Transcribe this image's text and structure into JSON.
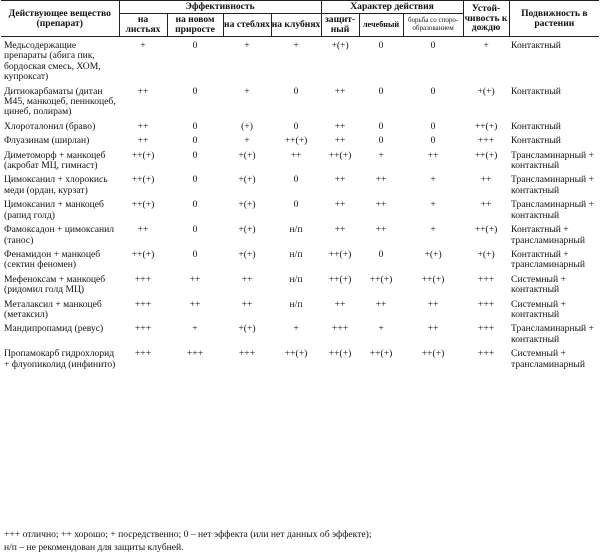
{
  "headers": {
    "substance": "Действующее вещество (препарат)",
    "efficacy": "Эффективность",
    "action": "Характер действия",
    "resistance": "Устой-чивость к дождю",
    "mobility": "Подвижность в растении",
    "leaves": "на листьях",
    "new_growth": "на новом приросте",
    "stems": "на стеблях",
    "tubers": "на клубнях",
    "protective": "защит-ный",
    "curative": "лечебный",
    "anti_spore": "борьба со споро-образованием"
  },
  "rows": [
    {
      "name": "Медьсодержащие препараты (абига пик, бордоская смесь, ХОМ, купроксат)",
      "leaves": "+",
      "new_growth": "0",
      "stems": "+",
      "tubers": "+",
      "protective": "+(+)",
      "curative": "0",
      "anti_spore": "0",
      "rain": "+",
      "mobility": "Контактный"
    },
    {
      "name": "Дитиокарбаматы (дитан М45, манкоцеб, пеннкоцеб, цинеб, полирам)",
      "leaves": "++",
      "new_growth": "0",
      "stems": "+",
      "tubers": "0",
      "protective": "++",
      "curative": "0",
      "anti_spore": "0",
      "rain": "+(+)",
      "mobility": "Контактный"
    },
    {
      "name": "Хлороталонил (браво)",
      "leaves": "++",
      "new_growth": "0",
      "stems": "(+)",
      "tubers": "0",
      "protective": "++",
      "curative": "0",
      "anti_spore": "0",
      "rain": "++(+)",
      "mobility": "Контактный"
    },
    {
      "name": "Флуазинам (ширлан)",
      "leaves": "++",
      "new_growth": "0",
      "stems": "+",
      "tubers": "++(+)",
      "protective": "++",
      "curative": "0",
      "anti_spore": "0",
      "rain": "+++",
      "mobility": "Контактный"
    },
    {
      "name": "Диметоморф + манкоцеб (акробат МЦ, гимнаст)",
      "leaves": "++(+)",
      "new_growth": "0",
      "stems": "+(+)",
      "tubers": "++",
      "protective": "++(+)",
      "curative": "+",
      "anti_spore": "++",
      "rain": "++(+)",
      "mobility": "Трансламинарный + контактный"
    },
    {
      "name": "Цимоксанил + хлорокись меди (ордан, курзат)",
      "leaves": "++(+)",
      "new_growth": "0",
      "stems": "+(+)",
      "tubers": "0",
      "protective": "++",
      "curative": "++",
      "anti_spore": "+",
      "rain": "++",
      "mobility": "Трансламинарный + контактный"
    },
    {
      "name": "Цимоксанил + манкоцеб (рапид голд)",
      "leaves": "++(+)",
      "new_growth": "0",
      "stems": "+(+)",
      "tubers": "0",
      "protective": "++",
      "curative": "++",
      "anti_spore": "+",
      "rain": "++",
      "mobility": "Трансламинарный + контактный"
    },
    {
      "name": "Фамоксадон + цимоксанил (танос)",
      "leaves": "++",
      "new_growth": "0",
      "stems": "+(+)",
      "tubers": "н/п",
      "protective": "++",
      "curative": "++",
      "anti_spore": "+",
      "rain": "++(+)",
      "mobility": "Контактный + трансламинарный"
    },
    {
      "name": "Фенамидон + манкоцеб (сектин феномен)",
      "leaves": "++(+)",
      "new_growth": "0",
      "stems": "+(+)",
      "tubers": "н/п",
      "protective": "++(+)",
      "curative": "0",
      "anti_spore": "+(+)",
      "rain": "+(+)",
      "mobility": "Контактный + трансламинарный"
    },
    {
      "name": "Мефеноксам + манкоцеб (ридомил голд МЦ)",
      "leaves": "+++",
      "new_growth": "++",
      "stems": "++",
      "tubers": "н/п",
      "protective": "++(+)",
      "curative": "++(+)",
      "anti_spore": "++(+)",
      "rain": "+++",
      "mobility": "Системный + контактный"
    },
    {
      "name": "Металаксил + манкоцеб (метаксил)",
      "leaves": "+++",
      "new_growth": "++",
      "stems": "++",
      "tubers": "н/п",
      "protective": "++",
      "curative": "++",
      "anti_spore": "++",
      "rain": "+++",
      "mobility": "Системный + контактный"
    },
    {
      "name": "Мандипропамид (ревус)",
      "leaves": "+++",
      "new_growth": "+",
      "stems": "+(+)",
      "tubers": "+",
      "protective": "+++",
      "curative": "+",
      "anti_spore": "++",
      "rain": "+++",
      "mobility": "Трансламинарный + контактный"
    },
    {
      "name": "Пропамокарб гидрохлорид + флуопиколид (инфинито)",
      "leaves": "+++",
      "new_growth": "+++",
      "stems": "+++",
      "tubers": "++(+)",
      "protective": "++(+)",
      "curative": "++(+)",
      "anti_spore": "++(+)",
      "rain": "+++",
      "mobility": "Системный + трансламинарный"
    }
  ],
  "footnotes": [
    "+++ отлично; ++ хорошо; + посредственно; 0 – нет эффекта (или нет данных об эффекте);",
    "н/п – не рекомендован для защиты клубней."
  ]
}
